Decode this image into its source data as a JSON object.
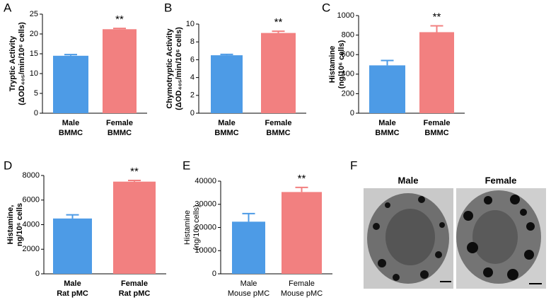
{
  "chart_data": [
    {
      "type": "bar",
      "panel": "A",
      "ylabel": [
        "Tryptic Activity",
        "(ΔOD₄₀₅/min/10⁶ cells)"
      ],
      "categories": [
        [
          "Male",
          "BMMC"
        ],
        [
          "Female",
          "BMMC"
        ]
      ],
      "values": [
        14.5,
        21.2
      ],
      "errors": [
        0.3,
        0.2
      ],
      "colors": [
        "#4d9be6",
        "#f28080"
      ],
      "significance": [
        null,
        "**"
      ],
      "ylim": [
        0,
        25
      ],
      "yticks": [
        0,
        5,
        10,
        15,
        20,
        25
      ]
    },
    {
      "type": "bar",
      "panel": "B",
      "ylabel": [
        "Chymotryptic Activity",
        "(ΔOD₄₀₅/min/10⁶ cells)"
      ],
      "categories": [
        [
          "Male",
          "BMMC"
        ],
        [
          "Female",
          "BMMC"
        ]
      ],
      "values": [
        6.5,
        9.0
      ],
      "errors": [
        0.1,
        0.2
      ],
      "colors": [
        "#4d9be6",
        "#f28080"
      ],
      "significance": [
        null,
        "**"
      ],
      "ylim": [
        0,
        10
      ],
      "yticks": [
        0,
        2,
        4,
        6,
        8,
        10
      ]
    },
    {
      "type": "bar",
      "panel": "C",
      "ylabel": [
        "Histamine",
        "(ng/10⁶ cells)"
      ],
      "categories": [
        [
          "Male",
          "BMMC"
        ],
        [
          "Female",
          "BMMC"
        ]
      ],
      "values": [
        490,
        830
      ],
      "errors": [
        50,
        65
      ],
      "colors": [
        "#4d9be6",
        "#f28080"
      ],
      "significance": [
        null,
        "**"
      ],
      "ylim": [
        0,
        1000
      ],
      "yticks": [
        0,
        200,
        400,
        600,
        800,
        1000
      ]
    },
    {
      "type": "bar",
      "panel": "D",
      "ylabel": [
        "Histamine,",
        "ng/10⁶ cells"
      ],
      "categories": [
        [
          "Male",
          "Rat pMC"
        ],
        [
          "Female",
          "Rat pMC"
        ]
      ],
      "values": [
        4500,
        7500
      ],
      "errors": [
        300,
        100
      ],
      "colors": [
        "#4d9be6",
        "#f28080"
      ],
      "significance": [
        null,
        "**"
      ],
      "ylim": [
        0,
        8000
      ],
      "yticks": [
        0,
        2000,
        4000,
        6000,
        8000
      ]
    },
    {
      "type": "bar",
      "panel": "E",
      "ylabel": [
        "Histamine",
        "(ng/10⁶ cells)"
      ],
      "categories": [
        [
          "Male",
          "Mouse pMC"
        ],
        [
          "Female",
          "Mouse pMC"
        ]
      ],
      "values": [
        22500,
        35300
      ],
      "errors": [
        3500,
        2000
      ],
      "colors": [
        "#4d9be6",
        "#f28080"
      ],
      "significance": [
        null,
        "**"
      ],
      "ylim": [
        0,
        40000
      ],
      "yticks": [
        0,
        10000,
        20000,
        30000,
        40000
      ]
    }
  ],
  "micrographs": {
    "panel": "F",
    "captions": [
      "Male",
      "Female"
    ]
  }
}
